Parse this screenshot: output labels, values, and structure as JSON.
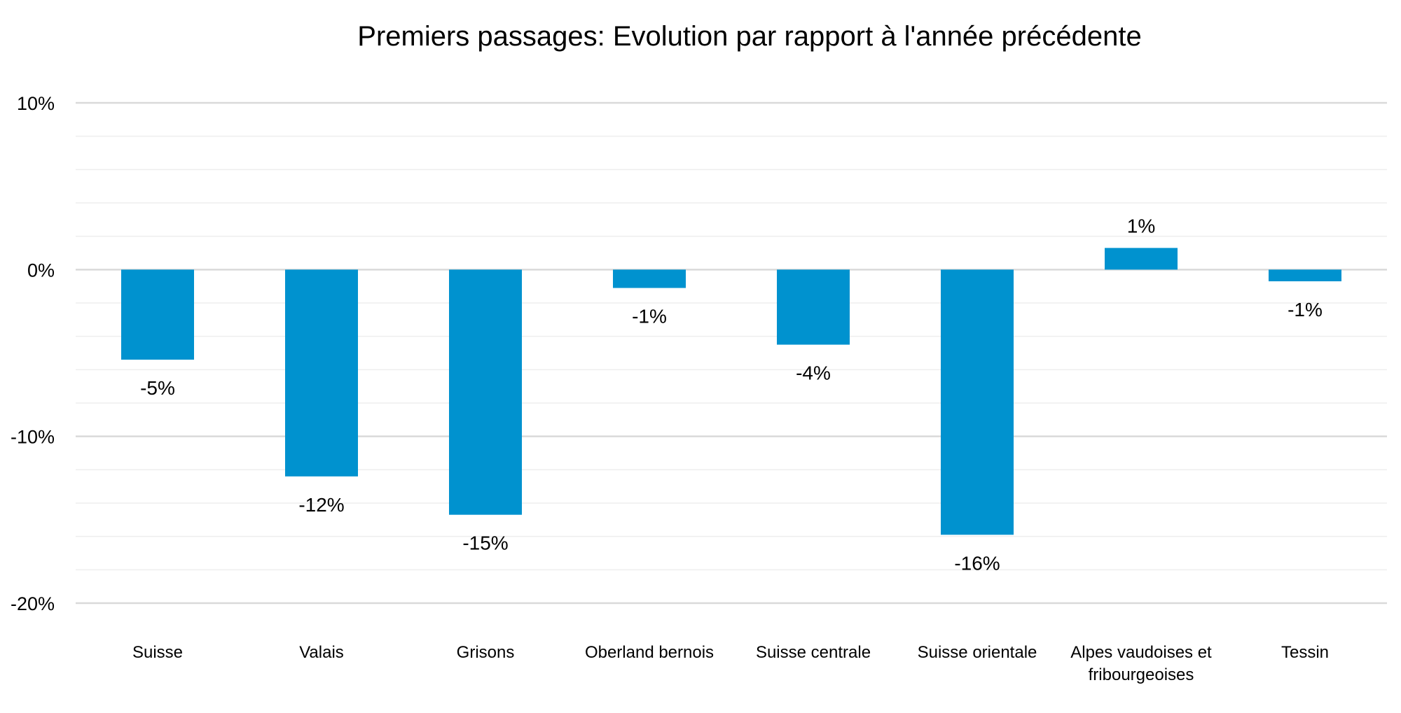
{
  "chart_data": {
    "type": "bar",
    "title": "Premiers passages: Evolution par rapport à l'année précédente",
    "xlabel": "",
    "ylabel": "",
    "categories": [
      [
        "Suisse"
      ],
      [
        "Valais"
      ],
      [
        "Grisons"
      ],
      [
        "Oberland bernois"
      ],
      [
        "Suisse centrale"
      ],
      [
        "Suisse orientale"
      ],
      [
        "Alpes vaudoises et",
        "fribourgeoises"
      ],
      [
        "Tessin"
      ]
    ],
    "values": [
      -5.4,
      -12.4,
      -14.7,
      -1.1,
      -4.5,
      -15.9,
      1.3,
      -0.7
    ],
    "data_labels": [
      "-5%",
      "-12%",
      "-15%",
      "-1%",
      "-4%",
      "-16%",
      "1%",
      "-1%"
    ],
    "ylim": [
      -20,
      10
    ],
    "y_ticks": [
      10,
      0,
      -10,
      -20
    ],
    "y_tick_labels": [
      "10%",
      "0%",
      "-10%",
      "-20%"
    ],
    "minor_gridline_step": 2,
    "grid": true,
    "legend": "none",
    "colors": {
      "bar": "#0092cf",
      "major_grid": "#d9d9d9",
      "minor_grid": "#eeeeee"
    }
  }
}
